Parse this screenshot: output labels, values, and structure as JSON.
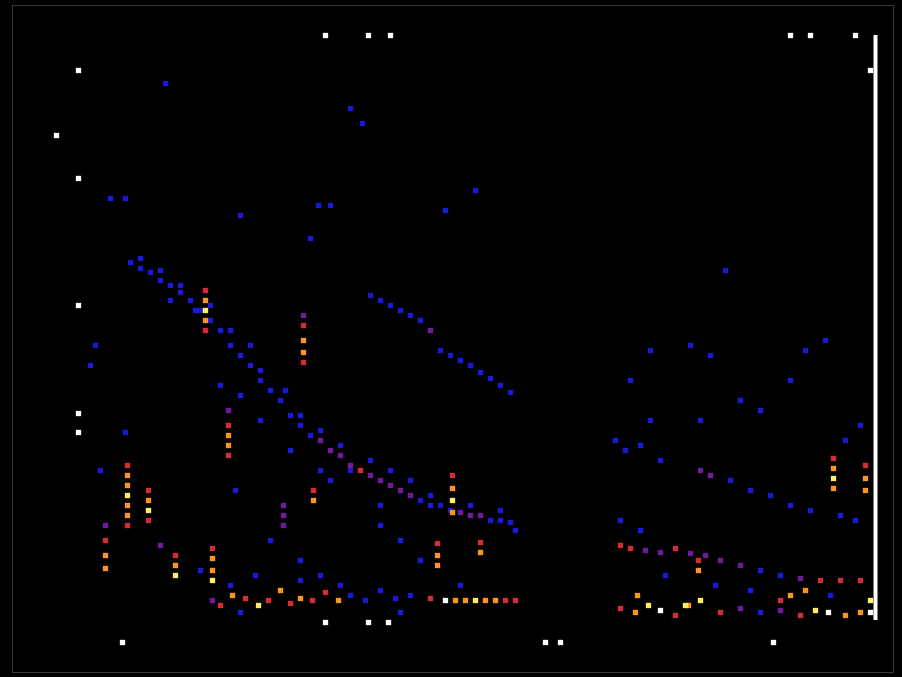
{
  "chart_data": {
    "type": "heatmap",
    "tick_labels": false,
    "xlim": [
      12,
      893
    ],
    "ylim": [
      672,
      5
    ],
    "zlim": [
      1,
      6
    ],
    "rule": {
      "x": 875,
      "y1": 35,
      "y2": 620
    },
    "cells": [
      [
        130,
        262,
        1
      ],
      [
        140,
        268,
        1
      ],
      [
        150,
        272,
        1
      ],
      [
        160,
        280,
        1
      ],
      [
        170,
        285,
        1
      ],
      [
        180,
        292,
        1
      ],
      [
        190,
        300,
        1
      ],
      [
        200,
        310,
        1
      ],
      [
        210,
        320,
        1
      ],
      [
        220,
        330,
        1
      ],
      [
        230,
        345,
        1
      ],
      [
        240,
        355,
        1
      ],
      [
        250,
        365,
        1
      ],
      [
        260,
        380,
        1
      ],
      [
        270,
        390,
        1
      ],
      [
        280,
        400,
        1
      ],
      [
        290,
        415,
        1
      ],
      [
        300,
        425,
        1
      ],
      [
        310,
        435,
        1
      ],
      [
        320,
        440,
        2
      ],
      [
        330,
        450,
        2
      ],
      [
        340,
        455,
        2
      ],
      [
        350,
        465,
        2
      ],
      [
        360,
        470,
        3
      ],
      [
        370,
        475,
        2
      ],
      [
        380,
        480,
        2
      ],
      [
        390,
        485,
        2
      ],
      [
        400,
        490,
        2
      ],
      [
        410,
        495,
        2
      ],
      [
        420,
        500,
        1
      ],
      [
        430,
        505,
        1
      ],
      [
        440,
        505,
        1
      ],
      [
        450,
        510,
        1
      ],
      [
        460,
        512,
        2
      ],
      [
        470,
        515,
        2
      ],
      [
        480,
        515,
        2
      ],
      [
        490,
        520,
        1
      ],
      [
        500,
        520,
        1
      ],
      [
        510,
        522,
        1
      ],
      [
        140,
        258,
        1
      ],
      [
        160,
        270,
        1
      ],
      [
        180,
        285,
        1
      ],
      [
        170,
        300,
        1
      ],
      [
        195,
        310,
        1
      ],
      [
        210,
        305,
        1
      ],
      [
        230,
        330,
        1
      ],
      [
        250,
        345,
        1
      ],
      [
        260,
        370,
        1
      ],
      [
        285,
        390,
        1
      ],
      [
        300,
        415,
        1
      ],
      [
        320,
        430,
        1
      ],
      [
        340,
        445,
        1
      ],
      [
        350,
        470,
        1
      ],
      [
        370,
        460,
        1
      ],
      [
        390,
        470,
        1
      ],
      [
        410,
        480,
        1
      ],
      [
        430,
        495,
        1
      ],
      [
        470,
        505,
        1
      ],
      [
        500,
        510,
        1
      ],
      [
        515,
        530,
        1
      ],
      [
        380,
        505,
        1
      ],
      [
        330,
        480,
        1
      ],
      [
        320,
        470,
        1
      ],
      [
        290,
        450,
        1
      ],
      [
        260,
        420,
        1
      ],
      [
        240,
        395,
        1
      ],
      [
        220,
        385,
        1
      ],
      [
        370,
        295,
        1
      ],
      [
        380,
        300,
        1
      ],
      [
        390,
        305,
        1
      ],
      [
        400,
        310,
        1
      ],
      [
        410,
        315,
        1
      ],
      [
        420,
        320,
        1
      ],
      [
        430,
        330,
        2
      ],
      [
        440,
        350,
        1
      ],
      [
        450,
        355,
        1
      ],
      [
        460,
        360,
        1
      ],
      [
        470,
        365,
        1
      ],
      [
        480,
        372,
        1
      ],
      [
        490,
        378,
        1
      ],
      [
        500,
        385,
        1
      ],
      [
        510,
        392,
        1
      ],
      [
        110,
        198,
        1
      ],
      [
        125,
        198,
        1
      ],
      [
        165,
        83,
        1
      ],
      [
        350,
        108,
        1
      ],
      [
        362,
        123,
        1
      ],
      [
        318,
        205,
        1
      ],
      [
        330,
        205,
        1
      ],
      [
        310,
        238,
        1
      ],
      [
        240,
        215,
        1
      ],
      [
        445,
        210,
        1
      ],
      [
        475,
        190,
        1
      ],
      [
        95,
        345,
        1
      ],
      [
        90,
        365,
        1
      ],
      [
        100,
        470,
        1
      ],
      [
        125,
        432,
        1
      ],
      [
        235,
        490,
        1
      ],
      [
        270,
        540,
        1
      ],
      [
        380,
        525,
        1
      ],
      [
        400,
        540,
        1
      ],
      [
        420,
        560,
        1
      ],
      [
        300,
        560,
        1
      ],
      [
        127,
        465,
        3
      ],
      [
        127,
        475,
        4
      ],
      [
        127,
        485,
        4
      ],
      [
        127,
        495,
        5
      ],
      [
        127,
        505,
        4
      ],
      [
        127,
        515,
        4
      ],
      [
        127,
        525,
        3
      ],
      [
        148,
        490,
        3
      ],
      [
        148,
        500,
        4
      ],
      [
        148,
        510,
        5
      ],
      [
        148,
        520,
        3
      ],
      [
        105,
        525,
        2
      ],
      [
        105,
        540,
        3
      ],
      [
        105,
        555,
        4
      ],
      [
        105,
        568,
        4
      ],
      [
        175,
        555,
        3
      ],
      [
        175,
        565,
        4
      ],
      [
        175,
        575,
        5
      ],
      [
        205,
        290,
        3
      ],
      [
        205,
        300,
        4
      ],
      [
        205,
        310,
        5
      ],
      [
        205,
        320,
        4
      ],
      [
        205,
        330,
        3
      ],
      [
        212,
        548,
        3
      ],
      [
        212,
        558,
        4
      ],
      [
        212,
        570,
        4
      ],
      [
        212,
        580,
        5
      ],
      [
        228,
        410,
        2
      ],
      [
        228,
        425,
        3
      ],
      [
        228,
        435,
        4
      ],
      [
        228,
        445,
        4
      ],
      [
        228,
        455,
        3
      ],
      [
        303,
        315,
        2
      ],
      [
        303,
        325,
        3
      ],
      [
        303,
        340,
        4
      ],
      [
        303,
        352,
        4
      ],
      [
        303,
        362,
        3
      ],
      [
        283,
        505,
        2
      ],
      [
        283,
        515,
        2
      ],
      [
        283,
        525,
        2
      ],
      [
        313,
        490,
        3
      ],
      [
        313,
        500,
        4
      ],
      [
        437,
        543,
        3
      ],
      [
        437,
        555,
        4
      ],
      [
        437,
        565,
        4
      ],
      [
        452,
        475,
        3
      ],
      [
        452,
        488,
        4
      ],
      [
        452,
        500,
        5
      ],
      [
        452,
        512,
        4
      ],
      [
        480,
        542,
        3
      ],
      [
        480,
        552,
        4
      ],
      [
        833,
        458,
        3
      ],
      [
        833,
        468,
        4
      ],
      [
        833,
        478,
        5
      ],
      [
        833,
        488,
        4
      ],
      [
        865,
        465,
        3
      ],
      [
        865,
        478,
        4
      ],
      [
        865,
        490,
        4
      ],
      [
        212,
        600,
        2
      ],
      [
        220,
        605,
        3
      ],
      [
        232,
        595,
        4
      ],
      [
        245,
        598,
        3
      ],
      [
        258,
        605,
        5
      ],
      [
        268,
        600,
        3
      ],
      [
        280,
        590,
        4
      ],
      [
        290,
        603,
        3
      ],
      [
        300,
        598,
        4
      ],
      [
        312,
        600,
        3
      ],
      [
        325,
        592,
        3
      ],
      [
        338,
        600,
        4
      ],
      [
        350,
        595,
        1
      ],
      [
        365,
        600,
        1
      ],
      [
        380,
        590,
        1
      ],
      [
        395,
        598,
        1
      ],
      [
        410,
        595,
        1
      ],
      [
        430,
        598,
        3
      ],
      [
        445,
        600,
        6
      ],
      [
        455,
        600,
        4
      ],
      [
        465,
        600,
        4
      ],
      [
        475,
        600,
        5
      ],
      [
        485,
        600,
        4
      ],
      [
        495,
        600,
        4
      ],
      [
        505,
        600,
        3
      ],
      [
        515,
        600,
        3
      ],
      [
        160,
        545,
        2
      ],
      [
        200,
        570,
        1
      ],
      [
        230,
        585,
        1
      ],
      [
        255,
        575,
        1
      ],
      [
        300,
        580,
        1
      ],
      [
        320,
        575,
        1
      ],
      [
        240,
        612,
        1
      ],
      [
        340,
        585,
        1
      ],
      [
        400,
        612,
        1
      ],
      [
        460,
        585,
        1
      ],
      [
        615,
        440,
        1
      ],
      [
        625,
        450,
        1
      ],
      [
        640,
        445,
        1
      ],
      [
        660,
        460,
        1
      ],
      [
        700,
        470,
        2
      ],
      [
        710,
        475,
        2
      ],
      [
        730,
        480,
        1
      ],
      [
        750,
        490,
        1
      ],
      [
        770,
        495,
        1
      ],
      [
        790,
        505,
        1
      ],
      [
        810,
        510,
        1
      ],
      [
        840,
        515,
        1
      ],
      [
        855,
        520,
        1
      ],
      [
        620,
        545,
        3
      ],
      [
        630,
        548,
        3
      ],
      [
        645,
        550,
        2
      ],
      [
        660,
        552,
        2
      ],
      [
        675,
        548,
        3
      ],
      [
        690,
        553,
        2
      ],
      [
        705,
        555,
        2
      ],
      [
        720,
        560,
        2
      ],
      [
        740,
        565,
        2
      ],
      [
        760,
        570,
        1
      ],
      [
        780,
        575,
        1
      ],
      [
        800,
        578,
        2
      ],
      [
        820,
        580,
        3
      ],
      [
        840,
        580,
        3
      ],
      [
        860,
        580,
        3
      ],
      [
        620,
        608,
        3
      ],
      [
        635,
        612,
        4
      ],
      [
        648,
        605,
        5
      ],
      [
        660,
        610,
        6
      ],
      [
        675,
        615,
        3
      ],
      [
        688,
        605,
        4
      ],
      [
        700,
        600,
        5
      ],
      [
        720,
        612,
        3
      ],
      [
        740,
        608,
        2
      ],
      [
        760,
        612,
        1
      ],
      [
        780,
        610,
        2
      ],
      [
        800,
        615,
        3
      ],
      [
        815,
        610,
        5
      ],
      [
        828,
        612,
        6
      ],
      [
        845,
        615,
        4
      ],
      [
        860,
        612,
        4
      ],
      [
        870,
        600,
        5
      ],
      [
        870,
        612,
        6
      ],
      [
        637,
        595,
        4
      ],
      [
        685,
        605,
        5
      ],
      [
        698,
        560,
        3
      ],
      [
        698,
        570,
        4
      ],
      [
        780,
        600,
        3
      ],
      [
        790,
        595,
        4
      ],
      [
        805,
        590,
        4
      ],
      [
        650,
        350,
        1
      ],
      [
        690,
        345,
        1
      ],
      [
        710,
        355,
        1
      ],
      [
        725,
        270,
        1
      ],
      [
        740,
        400,
        1
      ],
      [
        760,
        410,
        1
      ],
      [
        790,
        380,
        1
      ],
      [
        805,
        350,
        1
      ],
      [
        825,
        340,
        1
      ],
      [
        630,
        380,
        1
      ],
      [
        650,
        420,
        1
      ],
      [
        700,
        420,
        1
      ],
      [
        860,
        425,
        1
      ],
      [
        845,
        440,
        1
      ],
      [
        620,
        520,
        1
      ],
      [
        640,
        530,
        1
      ],
      [
        665,
        575,
        1
      ],
      [
        715,
        585,
        1
      ],
      [
        750,
        590,
        1
      ],
      [
        830,
        595,
        1
      ],
      [
        325,
        35,
        6
      ],
      [
        368,
        35,
        6
      ],
      [
        390,
        35,
        6
      ],
      [
        790,
        35,
        6
      ],
      [
        810,
        35,
        6
      ],
      [
        855,
        35,
        6
      ],
      [
        78,
        70,
        6
      ],
      [
        56,
        135,
        6
      ],
      [
        78,
        178,
        6
      ],
      [
        78,
        305,
        6
      ],
      [
        78,
        413,
        6
      ],
      [
        78,
        432,
        6
      ],
      [
        122,
        642,
        6
      ],
      [
        325,
        622,
        6
      ],
      [
        368,
        622,
        6
      ],
      [
        388,
        622,
        6
      ],
      [
        545,
        642,
        6
      ],
      [
        560,
        642,
        6
      ],
      [
        773,
        642,
        6
      ],
      [
        870,
        70,
        6
      ]
    ]
  }
}
